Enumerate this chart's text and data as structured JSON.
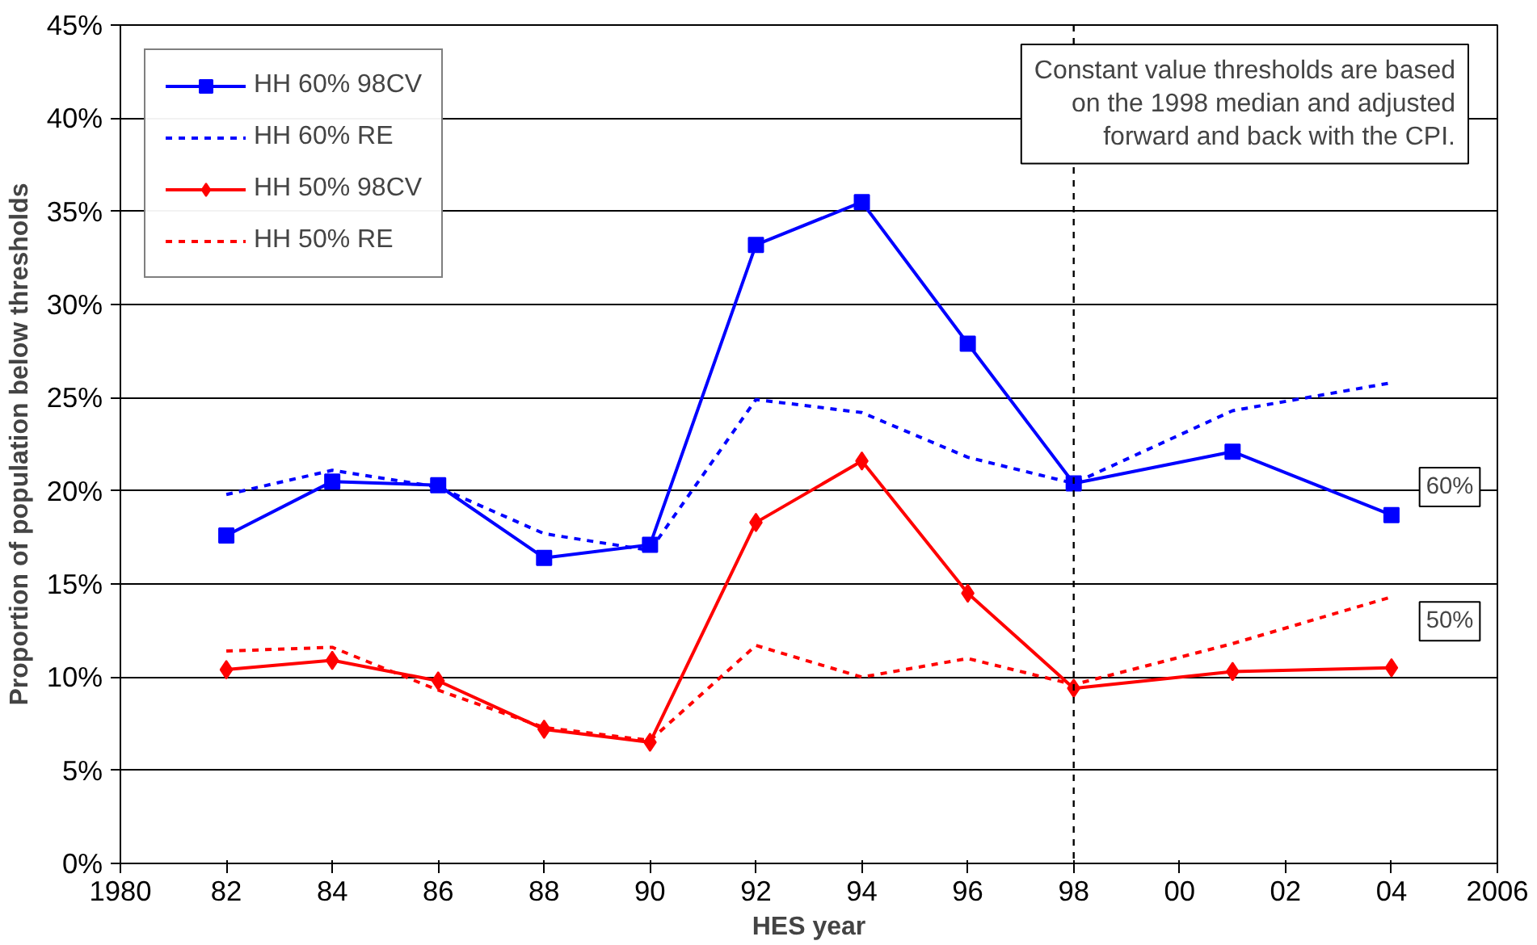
{
  "chart_data": {
    "type": "line",
    "xlabel": "HES year",
    "ylabel": "Proportion of population below thresholds",
    "x": [
      1982,
      1984,
      1986,
      1988,
      1990,
      1992,
      1994,
      1996,
      1998,
      2001,
      2004
    ],
    "series": [
      {
        "name": "HH 60% 98CV",
        "color": "#0000ff",
        "marker": "square",
        "line_style": "solid",
        "values": [
          17.6,
          20.5,
          20.3,
          16.4,
          17.1,
          33.2,
          35.5,
          27.9,
          20.4,
          22.1,
          18.7
        ]
      },
      {
        "name": "HH 60% RE",
        "color": "#0000ff",
        "marker": "none",
        "line_style": "dashed",
        "values": [
          19.8,
          21.1,
          20.2,
          17.7,
          16.8,
          24.9,
          24.2,
          21.8,
          20.4,
          24.3,
          25.8
        ]
      },
      {
        "name": "HH 50% 98CV",
        "color": "#ff0000",
        "marker": "diamond",
        "line_style": "solid",
        "values": [
          10.4,
          10.9,
          9.8,
          7.2,
          6.5,
          18.3,
          21.6,
          14.5,
          9.4,
          10.3,
          10.5
        ]
      },
      {
        "name": "HH 50% RE",
        "color": "#ff0000",
        "marker": "none",
        "line_style": "dashed",
        "values": [
          11.4,
          11.6,
          9.3,
          7.3,
          6.6,
          11.7,
          10.0,
          11.0,
          9.6,
          11.8,
          14.3
        ]
      }
    ],
    "xlim": [
      1980,
      2006
    ],
    "xticks": [
      1980,
      {
        "value": 1982,
        "label": "82"
      },
      {
        "value": 1984,
        "label": "84"
      },
      {
        "value": 1986,
        "label": "86"
      },
      {
        "value": 1988,
        "label": "88"
      },
      {
        "value": 1990,
        "label": "90"
      },
      {
        "value": 1992,
        "label": "92"
      },
      {
        "value": 1994,
        "label": "94"
      },
      {
        "value": 1996,
        "label": "96"
      },
      {
        "value": 1998,
        "label": "98"
      },
      {
        "value": 2000,
        "label": "00"
      },
      {
        "value": 2002,
        "label": "02"
      },
      {
        "value": 2004,
        "label": "04"
      },
      2006
    ],
    "ylim": [
      0,
      45
    ],
    "yticks": [
      {
        "value": 0,
        "label": "0%"
      },
      {
        "value": 5,
        "label": "5%"
      },
      {
        "value": 10,
        "label": "10%"
      },
      {
        "value": 15,
        "label": "15%"
      },
      {
        "value": 20,
        "label": "20%"
      },
      {
        "value": 25,
        "label": "25%"
      },
      {
        "value": 30,
        "label": "30%"
      },
      {
        "value": 35,
        "label": "35%"
      },
      {
        "value": 40,
        "label": "40%"
      },
      {
        "value": 45,
        "label": "45%"
      }
    ],
    "grid": "y",
    "legend": "top left",
    "ref_lines": [
      {
        "axis": "x",
        "value": 1998,
        "color": "#000000",
        "line_style": "dashed"
      }
    ],
    "annotations": [
      "Constant value thresholds are based\non the 1998 median and adjusted\nforward and back with the CPI.",
      {
        "text": "60%",
        "x": 2005.1,
        "y": 20.2
      },
      {
        "text": "50%",
        "x": 2005.1,
        "y": 13.0
      }
    ]
  }
}
